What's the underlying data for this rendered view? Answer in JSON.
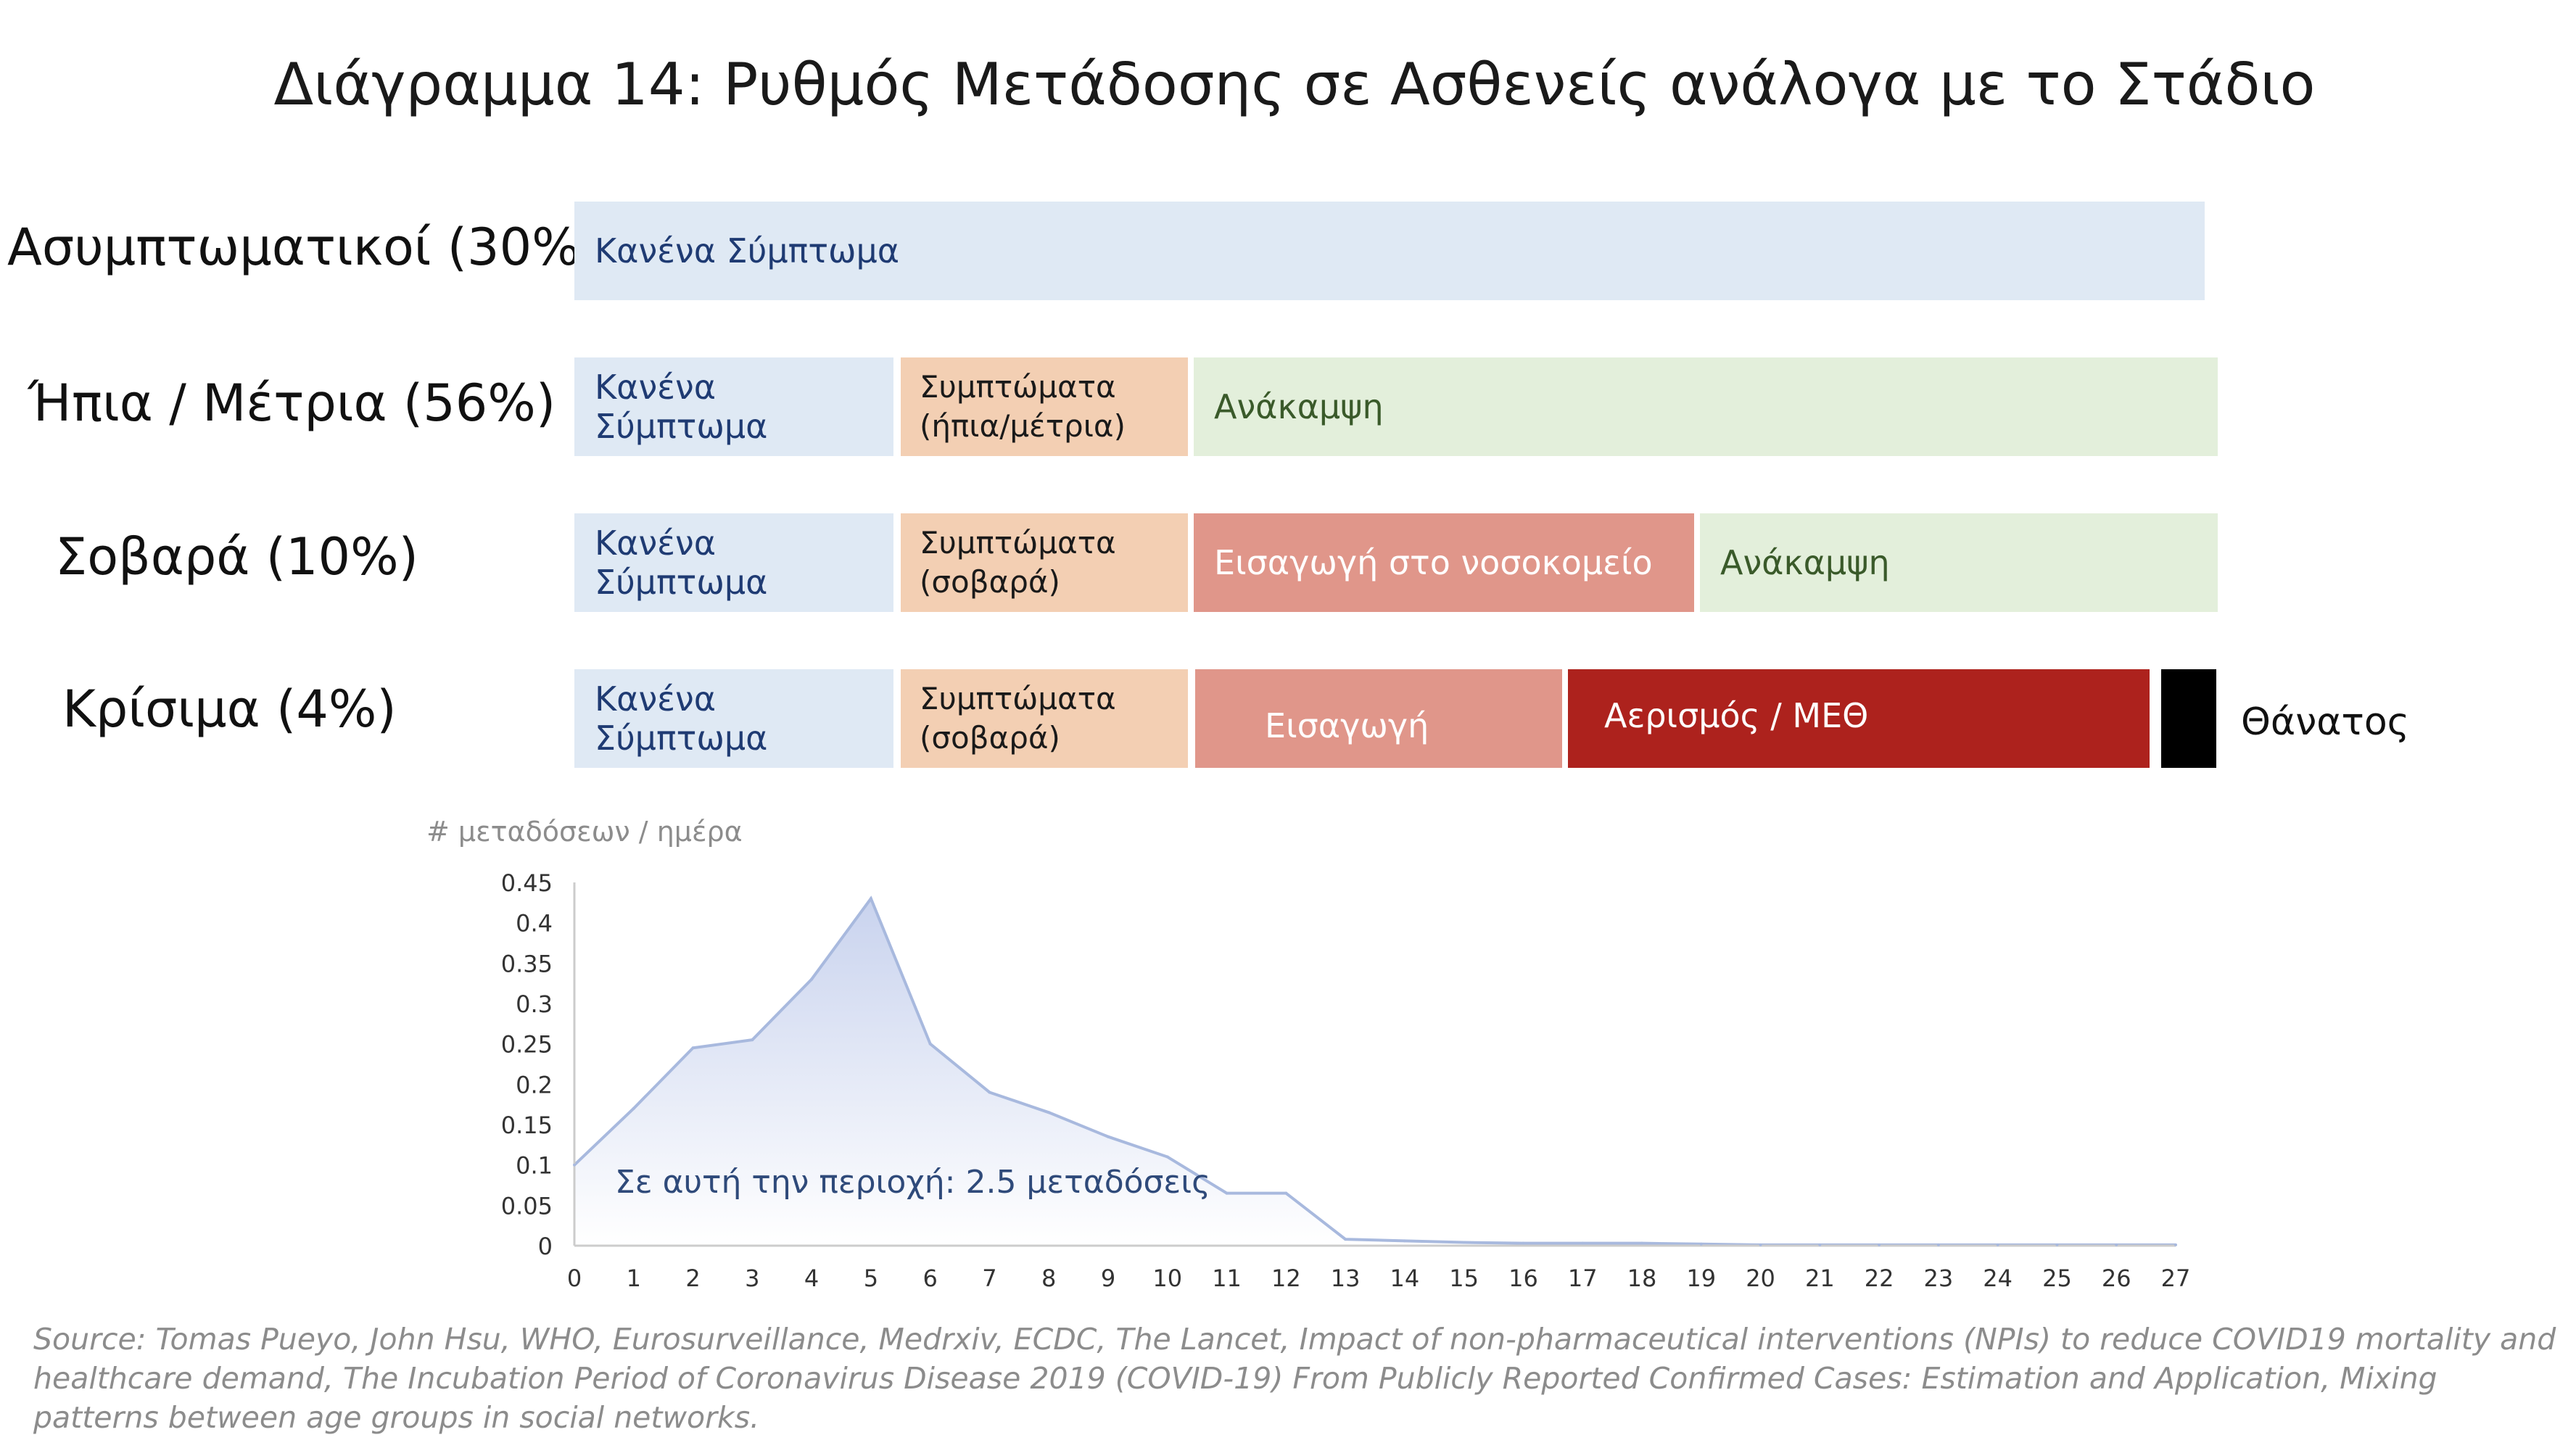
{
  "title": "Διάγραμμα 14: Ρυθμός Μετάδοσης σε Ασθενείς ανάλογα με το Στάδιο",
  "colors": {
    "no_symptoms": "#dfe9f4",
    "symptoms": "#f3cfb3",
    "recovery": "#e3efdb",
    "hospital": "#e0968a",
    "icu": "#ad221d",
    "death": "#000000",
    "curve_line": "#a8b9de",
    "curve_fill_top": "#c9d3ee",
    "curve_fill_bottom": "#ffffff",
    "axis_text": "#333333",
    "annotation_text": "#2f4a7a"
  },
  "rows": [
    {
      "label": "Ασυμπτωματικοί (30%)",
      "segments": [
        {
          "text": "Κανένα Σύμπτωμα",
          "kind": "no_symptoms"
        }
      ]
    },
    {
      "label": "Ήπια / Μέτρια (56%)",
      "segments": [
        {
          "text": "Κανένα Σύμπτωμα",
          "kind": "no_symptoms"
        },
        {
          "text": "Συμπτώματα\n(ήπια/μέτρια)",
          "kind": "symptoms"
        },
        {
          "text": "Ανάκαμψη",
          "kind": "recovery"
        }
      ]
    },
    {
      "label": "Σοβαρά (10%)",
      "segments": [
        {
          "text": "Κανένα Σύμπτωμα",
          "kind": "no_symptoms"
        },
        {
          "text": "Συμπτώματα\n(σοβαρά)",
          "kind": "symptoms"
        },
        {
          "text": "Εισαγωγή στο νοσοκομείο",
          "kind": "hospital"
        },
        {
          "text": "Ανάκαμψη",
          "kind": "recovery"
        }
      ]
    },
    {
      "label": "Κρίσιμα (4%)",
      "segments": [
        {
          "text": "Κανένα Σύμπτωμα",
          "kind": "no_symptoms"
        },
        {
          "text": "Συμπτώματα\n(σοβαρά)",
          "kind": "symptoms"
        },
        {
          "text": "Εισαγωγή",
          "kind": "hospital"
        },
        {
          "text": "Αερισμός / ΜΕΘ",
          "kind": "icu"
        },
        {
          "text": "",
          "kind": "death"
        }
      ],
      "end_label": "Θάνατος"
    }
  ],
  "chart_data": {
    "type": "area",
    "ylabel": "# μεταδόσεων / ημέρα",
    "x": [
      0,
      1,
      2,
      3,
      4,
      5,
      6,
      7,
      8,
      9,
      10,
      11,
      12,
      13,
      14,
      15,
      16,
      17,
      18,
      19,
      20,
      21,
      22,
      23,
      24,
      25,
      26,
      27
    ],
    "y": [
      0.1,
      0.17,
      0.245,
      0.255,
      0.33,
      0.43,
      0.25,
      0.19,
      0.165,
      0.135,
      0.11,
      0.065,
      0.065,
      0.008,
      0.006,
      0.004,
      0.003,
      0.003,
      0.003,
      0.002,
      0.001,
      0.001,
      0.001,
      0.001,
      0.001,
      0.001,
      0.001,
      0.001
    ],
    "xlim": [
      0,
      27
    ],
    "ylim": [
      0,
      0.45
    ],
    "xticks": [
      "0",
      "1",
      "2",
      "3",
      "4",
      "5",
      "6",
      "7",
      "8",
      "9",
      "10",
      "11",
      "12",
      "13",
      "14",
      "15",
      "16",
      "17",
      "18",
      "19",
      "20",
      "21",
      "22",
      "23",
      "24",
      "25",
      "26",
      "27"
    ],
    "yticks": [
      "0",
      "0.05",
      "0.1",
      "0.15",
      "0.2",
      "0.25",
      "0.3",
      "0.35",
      "0.4",
      "0.45"
    ],
    "annotation": "Σε αυτή την περιοχή: 2.5 μεταδόσεις",
    "grid": false
  },
  "source": "Source: Tomas Pueyo, John Hsu, WHO, Eurosurveillance, Medrxiv, ECDC, The Lancet, Impact of non-pharmaceutical interventions (NPIs) to reduce COVID19 mortality and healthcare demand, The Incubation Period of Coronavirus Disease 2019 (COVID-19) From Publicly Reported Confirmed Cases: Estimation and Application, Mixing patterns between age groups in social networks."
}
